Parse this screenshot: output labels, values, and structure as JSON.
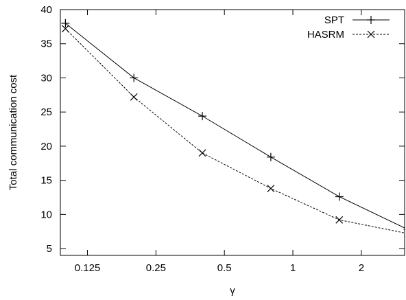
{
  "chart_data": {
    "type": "line",
    "xlabel": "γ",
    "ylabel": "Total communication cost",
    "x_scale": "log2",
    "xlim": [
      0.095,
      3.1
    ],
    "ylim": [
      4,
      40
    ],
    "x_ticks": [
      0.125,
      0.25,
      0.5,
      1,
      2
    ],
    "x_tick_labels": [
      "0.125",
      "0.25",
      "0.5",
      "1",
      "2"
    ],
    "y_ticks": [
      5,
      10,
      15,
      20,
      25,
      30,
      35,
      40
    ],
    "y_tick_labels": [
      "5",
      "10",
      "15",
      "20",
      "25",
      "30",
      "35",
      "40"
    ],
    "grid": false,
    "legend_position": "top-right",
    "x": [
      0.1,
      0.2,
      0.4,
      0.8,
      1.6,
      3.2
    ],
    "series": [
      {
        "name": "SPT",
        "marker": "plus",
        "line_style": "solid",
        "values": [
          38.0,
          30.0,
          24.4,
          18.4,
          12.6,
          7.8
        ]
      },
      {
        "name": "HASRM",
        "marker": "cross",
        "line_style": "dashed",
        "values": [
          37.2,
          27.2,
          19.0,
          13.8,
          9.2,
          7.2
        ]
      }
    ]
  }
}
